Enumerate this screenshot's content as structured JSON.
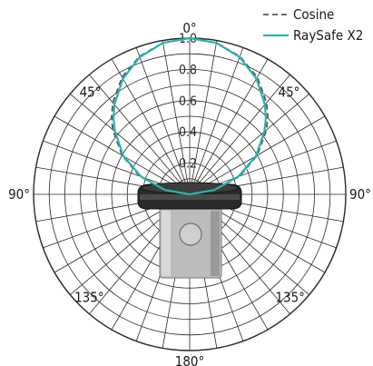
{
  "chart_data": {
    "type": "polar",
    "radial_range": [
      0,
      1.0
    ],
    "radial_ticks": [
      0.2,
      0.4,
      0.6,
      0.8,
      1.0
    ],
    "radial_tick_labels": [
      "0.2",
      "0.4",
      "0.6",
      "0.8",
      "1.0"
    ],
    "angle_labels": [
      {
        "angle": 0,
        "text": "0°"
      },
      {
        "angle": -45,
        "text": "45°"
      },
      {
        "angle": 45,
        "text": "45°"
      },
      {
        "angle": -90,
        "text": "90°"
      },
      {
        "angle": 90,
        "text": "90°"
      },
      {
        "angle": -135,
        "text": "135°"
      },
      {
        "angle": 135,
        "text": "135°"
      },
      {
        "angle": 180,
        "text": "180°"
      }
    ],
    "grid": true,
    "legend_position": "top-right",
    "series": [
      {
        "name": "Cosine",
        "style": "dashed",
        "color": "#555555",
        "angles": [
          -90,
          -80,
          -70,
          -60,
          -50,
          -45,
          -40,
          -30,
          -20,
          -10,
          0,
          10,
          20,
          30,
          40,
          45,
          50,
          60,
          70,
          80,
          90
        ],
        "values": [
          0.0,
          0.174,
          0.342,
          0.5,
          0.643,
          0.707,
          0.766,
          0.866,
          0.94,
          0.985,
          1.0,
          0.985,
          0.94,
          0.866,
          0.766,
          0.707,
          0.643,
          0.5,
          0.342,
          0.174,
          0.0
        ]
      },
      {
        "name": "RaySafe X2",
        "style": "solid",
        "color": "#2bb3b1",
        "angles": [
          -90,
          -80,
          -70,
          -60,
          -50,
          -45,
          -40,
          -30,
          -20,
          -10,
          0,
          10,
          20,
          30,
          40,
          45,
          50,
          60,
          70,
          80,
          90
        ],
        "values": [
          0.0,
          0.16,
          0.33,
          0.49,
          0.625,
          0.69,
          0.75,
          0.855,
          0.935,
          0.985,
          1.0,
          0.985,
          0.935,
          0.855,
          0.75,
          0.69,
          0.625,
          0.49,
          0.33,
          0.16,
          0.0
        ]
      }
    ]
  },
  "colors": {
    "grid": "#2a2a2a",
    "detector_body": "#b9b9b9",
    "detector_cap": "#2b2b2b"
  }
}
